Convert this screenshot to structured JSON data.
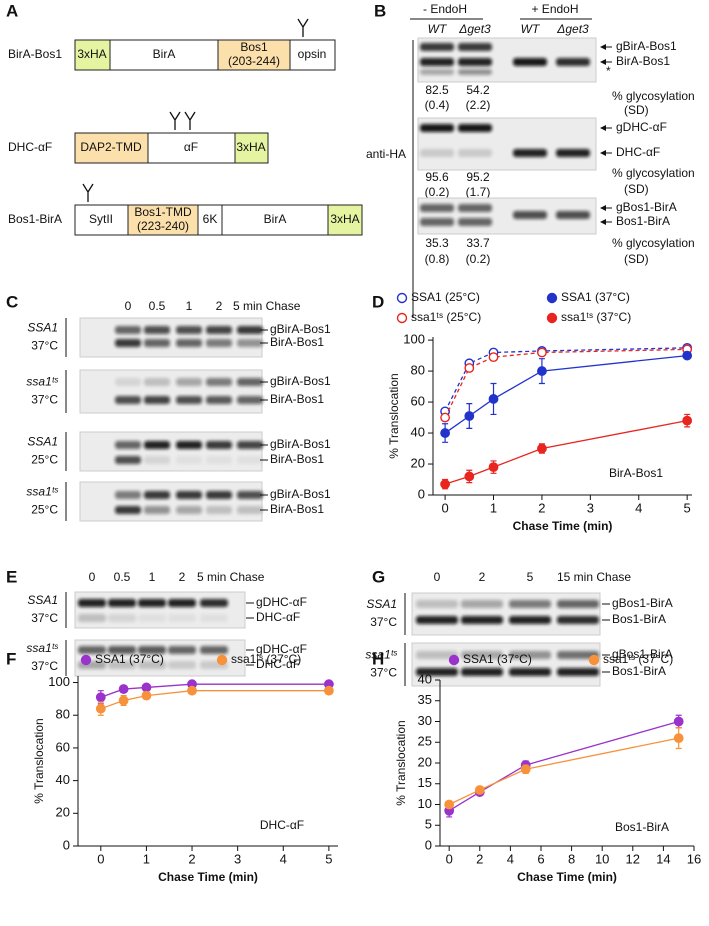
{
  "figure": {
    "A": {
      "label": "A",
      "constructs": [
        {
          "name": "BirA-Bos1",
          "segments": [
            "3xHA",
            "BirA",
            "Bos1",
            "(203-244)",
            "opsin"
          ]
        },
        {
          "name": "DHC-αF",
          "segments": [
            "DAP2-TMD",
            "αF",
            "3xHA"
          ]
        },
        {
          "name": "Bos1-BirA",
          "segments": [
            "SytII",
            "Bos1-TMD",
            "(223-240)",
            "6K",
            "BirA",
            "3xHA"
          ]
        }
      ]
    },
    "B": {
      "label": "B",
      "groups": [
        "- EndoH",
        "+ EndoH"
      ],
      "lanes": [
        "WT",
        "Δget3",
        "WT",
        "Δget3"
      ],
      "antibody": "anti-HA",
      "blots": [
        {
          "bands": [
            "gBirA-Bos1",
            "BirA-Bos1",
            "*"
          ],
          "glycosylation": [
            82.5,
            54.2
          ],
          "sd": [
            "(0.4)",
            "(2.2)"
          ],
          "measure": "% glycosylation",
          "sd_label": "(SD)"
        },
        {
          "bands": [
            "gDHC-αF",
            "DHC-αF"
          ],
          "glycosylation": [
            95.6,
            95.2
          ],
          "sd": [
            "(0.2)",
            "(1.7)"
          ],
          "measure": "% glycosylation",
          "sd_label": "(SD)"
        },
        {
          "bands": [
            "gBos1-BirA",
            "Bos1-BirA"
          ],
          "glycosylation": [
            35.3,
            33.7
          ],
          "sd": [
            "(0.8)",
            "(0.2)"
          ],
          "measure": "% glycosylation",
          "sd_label": "(SD)"
        }
      ]
    },
    "C": {
      "label": "C",
      "lanes": [
        "0",
        "0.5",
        "1",
        "2",
        "5 min Chase"
      ],
      "rows": [
        {
          "strain": "SSA1",
          "temp": "37°C"
        },
        {
          "strain": "ssa1ᵗˢ",
          "temp": "37°C"
        },
        {
          "strain": "SSA1",
          "temp": "25°C"
        },
        {
          "strain": "ssa1ᵗˢ",
          "temp": "25°C"
        }
      ],
      "bands": [
        "gBirA-Bos1",
        "BirA-Bos1"
      ]
    },
    "E": {
      "label": "E",
      "lanes": [
        "0",
        "0.5",
        "1",
        "2",
        "5 min Chase"
      ],
      "rows": [
        {
          "strain": "SSA1",
          "temp": "37°C"
        },
        {
          "strain": "ssa1ᵗˢ",
          "temp": "37°C"
        }
      ],
      "bands": [
        "gDHC-αF",
        "DHC-αF"
      ]
    },
    "G": {
      "label": "G",
      "lanes": [
        "0",
        "2",
        "5",
        "15 min Chase"
      ],
      "rows": [
        {
          "strain": "SSA1",
          "temp": "37°C"
        },
        {
          "strain": "ssa1ᵗˢ",
          "temp": "37°C"
        }
      ],
      "bands": [
        "gBos1-BirA",
        "Bos1-BirA"
      ]
    }
  },
  "chart_data": [
    {
      "type": "line",
      "label": "D",
      "annotation": "BirA-Bos1",
      "xlabel": "Chase Time (min)",
      "ylabel": "% Translocation",
      "x": [
        0,
        0.5,
        1,
        2,
        5
      ],
      "xlim": [
        -0.25,
        5.1
      ],
      "xticks": [
        0,
        1,
        2,
        3,
        4,
        5
      ],
      "ylim": [
        0,
        102
      ],
      "yticks": [
        0,
        20,
        40,
        60,
        80,
        100
      ],
      "series": [
        {
          "name": "SSA1 (25°C)",
          "color": "#2233cc",
          "marker": "open",
          "dashed": true,
          "values": [
            54,
            85,
            92,
            93,
            95
          ]
        },
        {
          "name": "ssa1ᵗˢ (25°C)",
          "color": "#e8251f",
          "marker": "open",
          "dashed": true,
          "values": [
            50,
            82,
            89,
            92,
            94
          ]
        },
        {
          "name": "SSA1 (37°C)",
          "color": "#2233cc",
          "marker": "filled",
          "dashed": false,
          "values": [
            40,
            51,
            62,
            80,
            90
          ],
          "errors": [
            6,
            8,
            10,
            8,
            2
          ]
        },
        {
          "name": "ssa1ᵗˢ (37°C)",
          "color": "#e8251f",
          "marker": "filled",
          "dashed": false,
          "values": [
            7,
            12,
            18,
            30,
            48
          ],
          "errors": [
            3,
            4,
            4,
            3,
            4
          ]
        }
      ]
    },
    {
      "type": "line",
      "label": "F",
      "annotation": "DHC-αF",
      "xlabel": "Chase Time (min)",
      "ylabel": "% Translocation",
      "x": [
        0,
        0.5,
        1,
        2,
        5
      ],
      "xlim": [
        -0.5,
        5.2
      ],
      "xticks": [
        0,
        1,
        2,
        3,
        4,
        5
      ],
      "ylim": [
        0,
        104
      ],
      "yticks": [
        0,
        20,
        40,
        60,
        80,
        100
      ],
      "series": [
        {
          "name": "SSA1 (37°C)",
          "color": "#9933cc",
          "marker": "filled",
          "dashed": false,
          "values": [
            91,
            96,
            97,
            99,
            99
          ],
          "errors": [
            4,
            2,
            2,
            1,
            1
          ]
        },
        {
          "name": "ssa1ᵗˢ (37°C)",
          "color": "#f7923a",
          "marker": "filled",
          "dashed": false,
          "values": [
            84,
            89,
            92,
            95,
            95
          ],
          "errors": [
            4,
            3,
            2,
            1,
            1
          ]
        }
      ]
    },
    {
      "type": "line",
      "label": "H",
      "annotation": "Bos1-BirA",
      "xlabel": "Chase Time (min)",
      "ylabel": "% Translocation",
      "x": [
        0,
        2,
        5,
        15
      ],
      "xlim": [
        -0.6,
        16
      ],
      "xticks": [
        0,
        2,
        4,
        6,
        8,
        10,
        12,
        14,
        16
      ],
      "ylim": [
        0,
        40
      ],
      "yticks": [
        0,
        5,
        10,
        15,
        20,
        25,
        30,
        35,
        40
      ],
      "series": [
        {
          "name": "SSA1 (37°C)",
          "color": "#9933cc",
          "marker": "filled",
          "dashed": false,
          "values": [
            8.5,
            13,
            19.5,
            30
          ],
          "errors": [
            1.5,
            0.5,
            1,
            1.5
          ]
        },
        {
          "name": "ssa1ᵗˢ (37°C)",
          "color": "#f7923a",
          "marker": "filled",
          "dashed": false,
          "values": [
            10,
            13.5,
            18.5,
            26
          ],
          "errors": [
            0.5,
            0.5,
            1,
            2.5
          ]
        }
      ]
    }
  ]
}
